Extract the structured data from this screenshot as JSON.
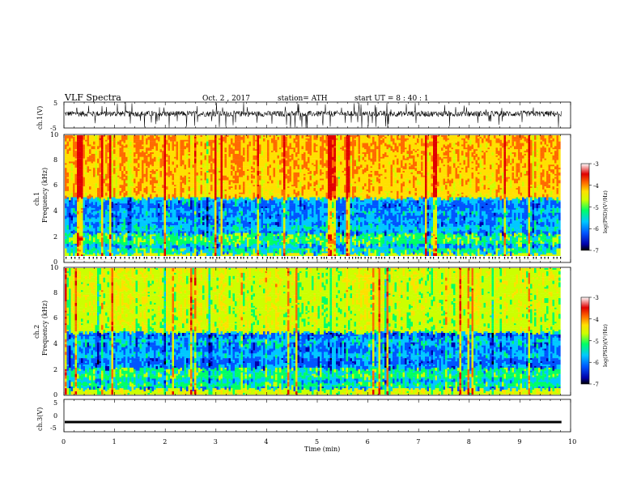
{
  "header": {
    "title": "VLF  Spectra",
    "date": "Oct. 2 , 2017",
    "station": "station= ATH",
    "start": "start  UT  =   8 : 40 : 1"
  },
  "colors": {
    "colormap": [
      "#000000",
      "#0000aa",
      "#0055ff",
      "#00c8ff",
      "#00ff66",
      "#ccff00",
      "#ffe000",
      "#ff6a00",
      "#e00000",
      "#ffffff"
    ]
  },
  "chart_data": [
    {
      "type": "line",
      "ylabel": "ch.1(V)",
      "ylim": [
        -5,
        5
      ],
      "yticks": [
        "5",
        "-5"
      ],
      "xlim": [
        0,
        10
      ],
      "description_level": "noisy signal centred slightly above 0 V, spikes to about ±5 V"
    },
    {
      "type": "heatmap",
      "channel": "ch.1",
      "ylabel": "Frequency  (kHz)",
      "ylim": [
        0,
        10
      ],
      "yticks": [
        "0",
        "2",
        "4",
        "6",
        "8",
        "10"
      ],
      "xlim": [
        0,
        10
      ],
      "colorbar": {
        "label": "log(PSD)(V²/Hz)",
        "range": [
          -7,
          -3
        ],
        "ticks": [
          "-3",
          "-4",
          "-5",
          "-6",
          "-7"
        ]
      }
    },
    {
      "type": "heatmap",
      "channel": "ch.2",
      "ylabel": "Frequency  (kHz)",
      "ylim": [
        0,
        10
      ],
      "yticks": [
        "0",
        "2",
        "4",
        "6",
        "8",
        "10"
      ],
      "xlim": [
        0,
        10
      ],
      "colorbar": {
        "label": "log(PSD)(V²/Hz)",
        "range": [
          -7,
          -3
        ],
        "ticks": [
          "-3",
          "-4",
          "-5",
          "-6",
          "-7"
        ]
      }
    },
    {
      "type": "line",
      "ylabel": "ch.3(V)",
      "ylim": [
        -5,
        5
      ],
      "yticks": [
        "5",
        "0",
        "-5"
      ],
      "xlim": [
        0,
        10
      ],
      "constant_value": -2
    }
  ],
  "xaxis": {
    "label": "Time  (min)",
    "ticks": [
      "0",
      "1",
      "2",
      "3",
      "4",
      "5",
      "6",
      "7",
      "8",
      "9",
      "10"
    ],
    "data_end_min": 9.82
  }
}
